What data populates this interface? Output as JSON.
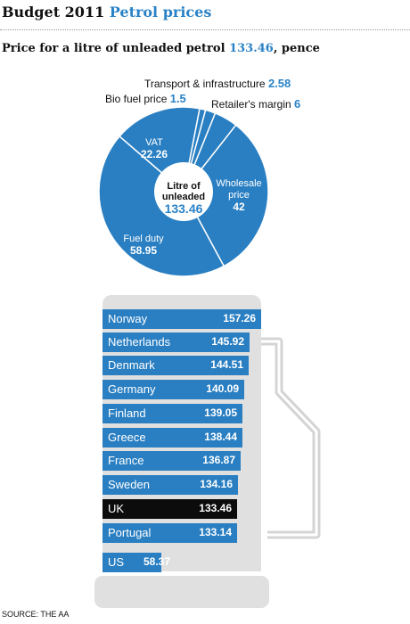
{
  "header": {
    "title_prefix": "Budget 2011",
    "title_suffix": "Petrol prices"
  },
  "subtitle": {
    "text": "Price for a litre of unleaded petrol",
    "value": "133.46",
    "unit": ", pence"
  },
  "colors": {
    "accent": "#2b83c7",
    "bar": "#2a7fc2",
    "highlight": "#0c0c0c",
    "pump": "#e0e0e0"
  },
  "pie_labels": {
    "center_line1": "Litre of",
    "center_line2": "unleaded",
    "center_value": "133.46"
  },
  "source": "SOURCE: THE AA",
  "chart_data": [
    {
      "type": "pie",
      "title": "Price for a litre of unleaded petrol 133.46, pence",
      "total": 133.46,
      "slices": [
        {
          "label": "Transport & infrastructure",
          "value": 2.58
        },
        {
          "label": "Retailer's margin",
          "value": 6
        },
        {
          "label": "Wholesale price",
          "value": 42
        },
        {
          "label": "Fuel duty",
          "value": 58.95
        },
        {
          "label": "VAT",
          "value": 22.26
        },
        {
          "label": "Bio fuel price",
          "value": 1.5
        }
      ]
    },
    {
      "type": "bar",
      "orientation": "horizontal",
      "categories": [
        "Norway",
        "Netherlands",
        "Denmark",
        "Germany",
        "Finland",
        "Greece",
        "France",
        "Sweden",
        "UK",
        "Portugal",
        "US"
      ],
      "values": [
        157.26,
        145.92,
        144.51,
        140.09,
        139.05,
        138.44,
        136.87,
        134.16,
        133.46,
        133.14,
        58.37
      ],
      "value_labels": [
        "157.26",
        "145.92",
        "144.51",
        "140.09",
        "139.05",
        "138.44",
        "136.87",
        "134.16",
        "133.46",
        "133.14",
        "58.37"
      ],
      "highlight": "UK",
      "xlim": [
        0,
        157.26
      ]
    }
  ]
}
